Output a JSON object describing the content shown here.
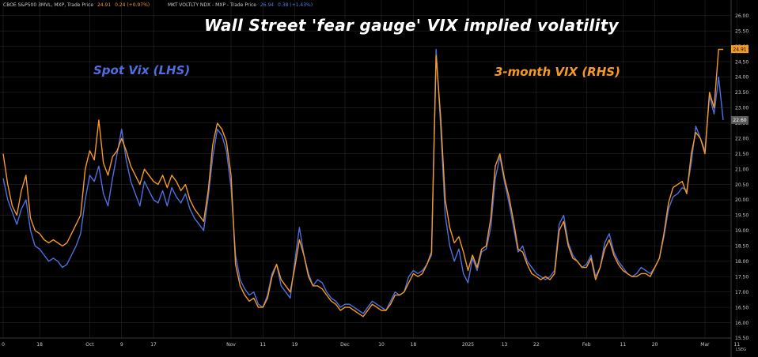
{
  "legend": {
    "vix3m": {
      "name": "CBOE S&P500 3MVL, MXP, Trade Price",
      "value": "24.91",
      "change": "0.24 (+0.97%)"
    },
    "vxn": {
      "name": "MKT VOLTLTY NDX - MXP - Trade Price",
      "value": "26.94",
      "change": "0.38 (+1.43%)"
    }
  },
  "title": "Wall Street 'fear gauge' VIX implied volatility",
  "label_spot": "Spot Vix (LHS)",
  "label_3m": "3-month VIX (RHS)",
  "watermark": "LSEG",
  "colors": {
    "background": "#000000",
    "spot": "#4f6fe0",
    "three_month": "#f59a23",
    "grid": "#262626",
    "axis_text": "#c8c8c8"
  },
  "chart_data": {
    "type": "line",
    "title": "Wall Street 'fear gauge' VIX implied volatility",
    "y_axis": "right",
    "ylim": [
      15.5,
      26.2
    ],
    "y_ticks": [
      "15.50",
      "16.00",
      "16.50",
      "17.00",
      "17.50",
      "18.00",
      "18.50",
      "19.00",
      "19.50",
      "20.00",
      "20.50",
      "21.00",
      "21.50",
      "22.00",
      "22.50",
      "23.00",
      "23.50",
      "24.00",
      "24.50",
      "25.00",
      "25.50",
      "26.00"
    ],
    "x_ticks": [
      {
        "label": "0",
        "i": 0
      },
      {
        "label": "18",
        "i": 8
      },
      {
        "label": "Oct",
        "i": 19
      },
      {
        "label": "9",
        "i": 26
      },
      {
        "label": "17",
        "i": 33
      },
      {
        "label": "Nov",
        "i": 50
      },
      {
        "label": "11",
        "i": 57
      },
      {
        "label": "19",
        "i": 64
      },
      {
        "label": "Dec",
        "i": 75
      },
      {
        "label": "10",
        "i": 83
      },
      {
        "label": "18",
        "i": 90
      },
      {
        "label": "2025",
        "i": 102
      },
      {
        "label": "13",
        "i": 110
      },
      {
        "label": "22",
        "i": 117
      },
      {
        "label": "Feb",
        "i": 128
      },
      {
        "label": "11",
        "i": 136
      },
      {
        "label": "20",
        "i": 143
      },
      {
        "label": "Mar",
        "i": 154
      },
      {
        "label": "11",
        "i": 161
      }
    ],
    "last_values": [
      {
        "series": "3-month VIX (RHS)",
        "value": "24.91"
      },
      {
        "series": "Spot Vix (LHS)",
        "value": "22.60"
      }
    ],
    "series": [
      {
        "name": "Spot Vix (LHS)",
        "values": [
          20.7,
          20.0,
          19.6,
          19.2,
          19.7,
          20.0,
          19.0,
          18.5,
          18.4,
          18.2,
          18.0,
          18.1,
          18.0,
          17.8,
          17.9,
          18.2,
          18.5,
          18.9,
          20.0,
          20.8,
          20.6,
          21.1,
          20.2,
          19.8,
          20.7,
          21.5,
          22.3,
          21.3,
          20.6,
          20.2,
          19.8,
          20.6,
          20.3,
          20.0,
          19.9,
          20.3,
          19.8,
          20.4,
          20.1,
          19.9,
          20.2,
          19.7,
          19.4,
          19.2,
          19.0,
          20.1,
          21.4,
          22.3,
          22.1,
          21.6,
          20.4,
          18.2,
          17.4,
          17.1,
          16.9,
          17.0,
          16.6,
          16.5,
          16.9,
          17.6,
          17.9,
          17.2,
          17.0,
          16.8,
          18.0,
          19.1,
          18.2,
          17.6,
          17.2,
          17.4,
          17.3,
          17.0,
          16.8,
          16.7,
          16.5,
          16.6,
          16.6,
          16.5,
          16.4,
          16.3,
          16.5,
          16.7,
          16.6,
          16.5,
          16.4,
          16.7,
          17.0,
          16.9,
          17.0,
          17.5,
          17.7,
          17.6,
          17.7,
          17.9,
          18.2,
          24.9,
          22.4,
          19.5,
          18.5,
          18.0,
          18.4,
          17.6,
          17.3,
          18.1,
          17.7,
          18.3,
          18.4,
          19.1,
          20.7,
          21.4,
          20.6,
          19.9,
          19.1,
          18.3,
          18.5,
          18.0,
          17.8,
          17.6,
          17.5,
          17.4,
          17.5,
          17.7,
          19.2,
          19.5,
          18.6,
          18.2,
          18.0,
          17.8,
          17.9,
          18.2,
          17.5,
          17.8,
          18.6,
          18.9,
          18.3,
          18.0,
          17.8,
          17.6,
          17.5,
          17.6,
          17.8,
          17.7,
          17.6,
          17.8,
          18.1,
          18.8,
          19.7,
          20.1,
          20.2,
          20.4,
          20.3,
          21.2,
          22.4,
          22.0,
          21.6,
          23.4,
          22.8,
          24.0,
          22.6
        ]
      },
      {
        "name": "3-month VIX (RHS)",
        "values": [
          21.5,
          20.5,
          19.8,
          19.5,
          20.3,
          20.8,
          19.4,
          19.0,
          18.9,
          18.7,
          18.6,
          18.7,
          18.6,
          18.5,
          18.6,
          18.9,
          19.2,
          19.5,
          21.0,
          21.6,
          21.3,
          22.6,
          21.2,
          20.8,
          21.4,
          21.6,
          22.0,
          21.6,
          21.1,
          20.8,
          20.5,
          21.0,
          20.8,
          20.6,
          20.5,
          20.8,
          20.4,
          20.8,
          20.6,
          20.3,
          20.5,
          20.0,
          19.7,
          19.5,
          19.3,
          20.3,
          21.8,
          22.5,
          22.3,
          21.9,
          20.8,
          17.9,
          17.2,
          16.9,
          16.7,
          16.8,
          16.5,
          16.5,
          16.8,
          17.5,
          17.9,
          17.4,
          17.2,
          17.0,
          17.8,
          18.7,
          18.2,
          17.5,
          17.2,
          17.2,
          17.1,
          16.9,
          16.7,
          16.6,
          16.4,
          16.5,
          16.5,
          16.4,
          16.3,
          16.2,
          16.4,
          16.6,
          16.5,
          16.4,
          16.4,
          16.6,
          16.9,
          16.9,
          17.0,
          17.3,
          17.6,
          17.5,
          17.6,
          17.9,
          18.3,
          24.7,
          22.7,
          20.0,
          19.1,
          18.6,
          18.8,
          18.3,
          17.7,
          18.2,
          17.8,
          18.4,
          18.5,
          19.4,
          21.1,
          21.5,
          20.7,
          20.1,
          19.3,
          18.4,
          18.3,
          17.9,
          17.6,
          17.5,
          17.4,
          17.5,
          17.4,
          17.6,
          19.0,
          19.3,
          18.5,
          18.1,
          18.0,
          17.8,
          17.8,
          18.1,
          17.4,
          17.8,
          18.4,
          18.7,
          18.2,
          17.9,
          17.7,
          17.6,
          17.5,
          17.5,
          17.6,
          17.6,
          17.5,
          17.8,
          18.1,
          18.9,
          19.9,
          20.4,
          20.5,
          20.6,
          20.2,
          21.5,
          22.2,
          22.0,
          21.5,
          23.5,
          23.0,
          24.9,
          24.9
        ]
      }
    ]
  }
}
